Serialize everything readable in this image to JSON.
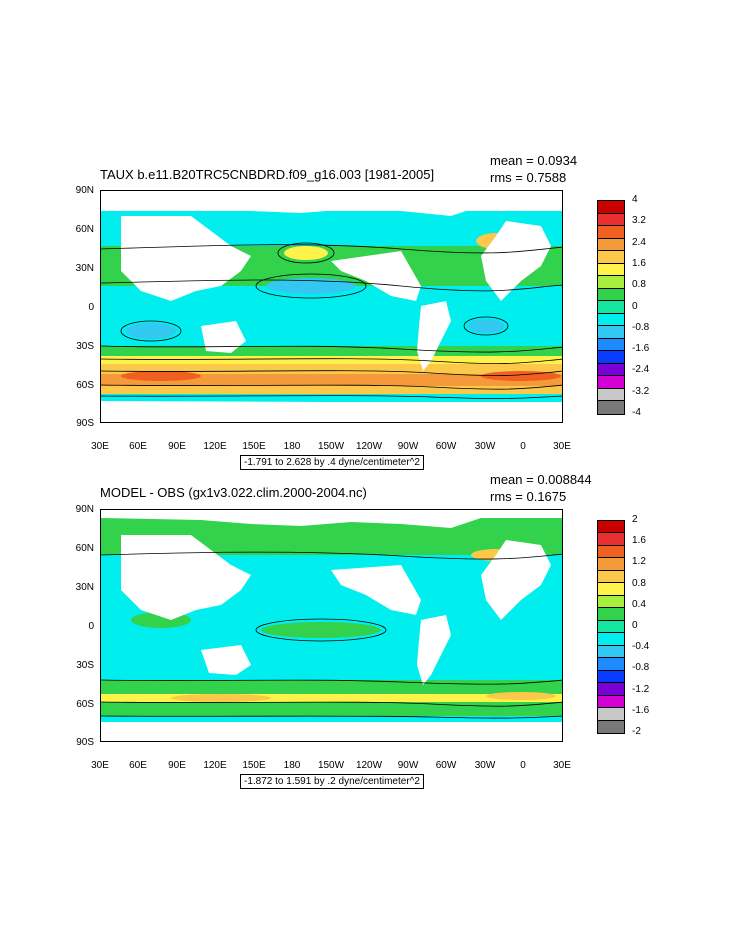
{
  "chart_data": [
    {
      "type": "heatmap",
      "title": "TAUX b.e11.B20TRC5CNBDRD.f09_g16.003 [1981-2005]",
      "mean_label": "mean = 0.0934",
      "rms_label": "rms = 0.7588",
      "y_ticks": [
        "90N",
        "60N",
        "30N",
        "0",
        "30S",
        "60S",
        "90S"
      ],
      "x_ticks": [
        "30E",
        "60E",
        "90E",
        "120E",
        "150E",
        "180",
        "150W",
        "120W",
        "90W",
        "60W",
        "30W",
        "0",
        "30E"
      ],
      "range_label": "-1.791 to 2.628 by .4 dyne/centimeter^2",
      "colorbar_labels": [
        "4",
        "3.2",
        "2.4",
        "1.6",
        "0.8",
        "0",
        "-0.8",
        "-1.6",
        "-2.4",
        "-3.2",
        "-4"
      ],
      "colorbar_colors": [
        "#c80000",
        "#e83030",
        "#f06020",
        "#f59a3a",
        "#fbc84a",
        "#fff24a",
        "#a8ee3c",
        "#32d24c",
        "#14e6a0",
        "#00eeee",
        "#32c8f0",
        "#1e8cff",
        "#0a3cff",
        "#7a00d8",
        "#d200d2",
        "#c8c8c8",
        "#787878"
      ]
    },
    {
      "type": "heatmap",
      "title": "MODEL - OBS (gx1v3.022.clim.2000-2004.nc)",
      "mean_label": "mean = 0.008844",
      "rms_label": "rms = 0.1675",
      "y_ticks": [
        "90N",
        "60N",
        "30N",
        "0",
        "30S",
        "60S",
        "90S"
      ],
      "x_ticks": [
        "30E",
        "60E",
        "90E",
        "120E",
        "150E",
        "180",
        "150W",
        "120W",
        "90W",
        "60W",
        "30W",
        "0",
        "30E"
      ],
      "range_label": "-1.872 to 1.591 by .2 dyne/centimeter^2",
      "colorbar_labels": [
        "2",
        "1.6",
        "1.2",
        "0.8",
        "0.4",
        "0",
        "-0.4",
        "-0.8",
        "-1.2",
        "-1.6",
        "-2"
      ],
      "colorbar_colors": [
        "#c80000",
        "#e83030",
        "#f06020",
        "#f59a3a",
        "#fbc84a",
        "#fff24a",
        "#a8ee3c",
        "#32d24c",
        "#14e6a0",
        "#00eeee",
        "#32c8f0",
        "#1e8cff",
        "#0a3cff",
        "#7a00d8",
        "#d200d2",
        "#c8c8c8",
        "#787878"
      ]
    }
  ]
}
